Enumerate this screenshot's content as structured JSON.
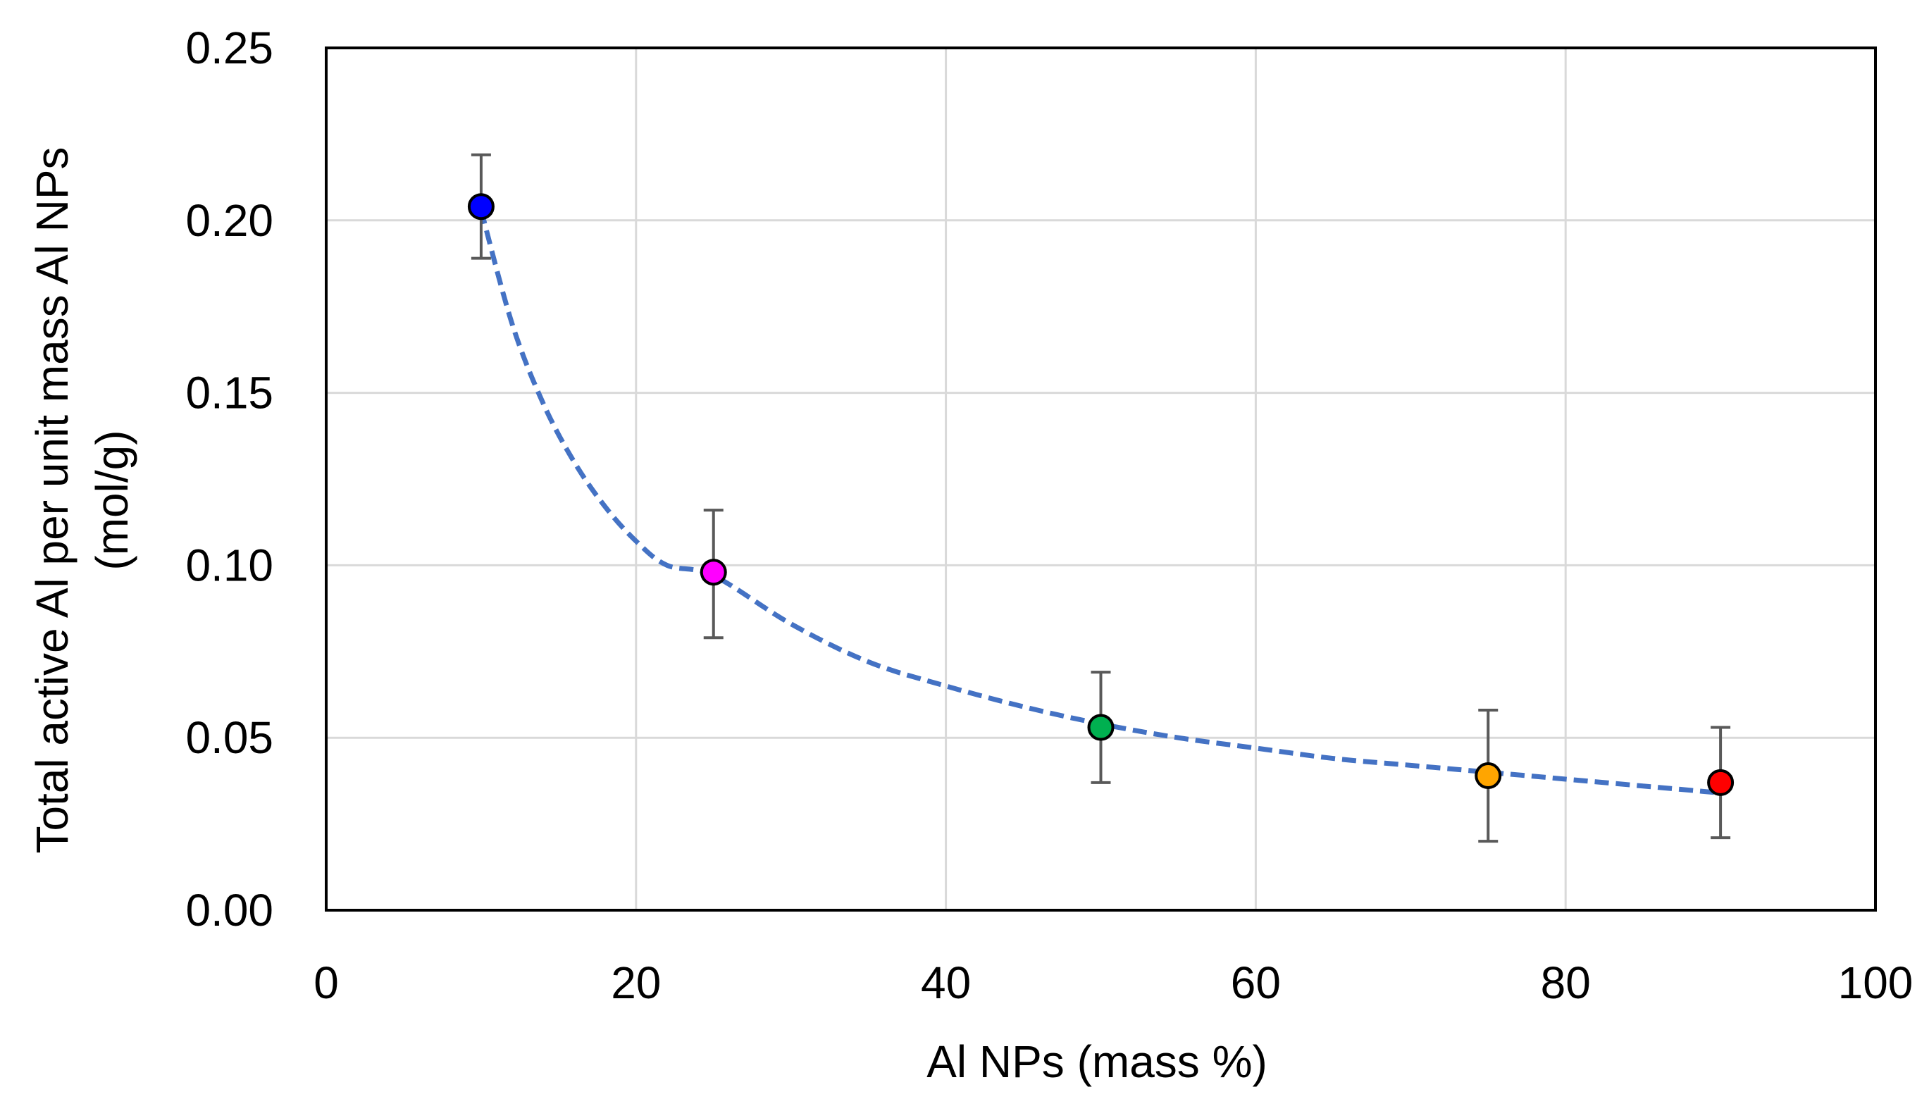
{
  "chart_data": {
    "type": "scatter",
    "title": "",
    "xlabel": "Al NPs (mass %)",
    "ylabel_line1": "Total active Al per unit mass Al NPs",
    "ylabel_line2": "(mol/g)",
    "xlim": [
      0,
      100
    ],
    "ylim": [
      0,
      0.25
    ],
    "x_ticks": [
      0,
      20,
      40,
      60,
      80,
      100
    ],
    "x_tick_labels": [
      "0",
      "20",
      "40",
      "60",
      "80",
      "100"
    ],
    "y_ticks": [
      0,
      0.05,
      0.1,
      0.15,
      0.2,
      0.25
    ],
    "y_tick_labels": [
      "0.00",
      "0.05",
      "0.10",
      "0.15",
      "0.20",
      "0.25"
    ],
    "grid": true,
    "points": [
      {
        "x": 10,
        "y": 0.204,
        "err_low": 0.189,
        "err_high": 0.219,
        "color": "#0000ff"
      },
      {
        "x": 25,
        "y": 0.098,
        "err_low": 0.079,
        "err_high": 0.116,
        "color": "#ff00ff"
      },
      {
        "x": 50,
        "y": 0.053,
        "err_low": 0.037,
        "err_high": 0.069,
        "color": "#00b050"
      },
      {
        "x": 75,
        "y": 0.039,
        "err_low": 0.02,
        "err_high": 0.058,
        "color": "#ffa500"
      },
      {
        "x": 90,
        "y": 0.037,
        "err_low": 0.021,
        "err_high": 0.053,
        "color": "#ff0000"
      }
    ],
    "trendline": {
      "style": "dashed",
      "color": "#4472c4",
      "x": [
        10,
        12,
        14,
        16,
        18,
        20,
        22,
        25,
        30,
        35,
        40,
        45,
        50,
        55,
        60,
        65,
        70,
        75,
        80,
        85,
        90
      ],
      "y": [
        0.203,
        0.17,
        0.147,
        0.13,
        0.117,
        0.107,
        0.1,
        0.097,
        0.083,
        0.072,
        0.065,
        0.059,
        0.054,
        0.05,
        0.047,
        0.044,
        0.042,
        0.04,
        0.038,
        0.036,
        0.034
      ]
    }
  }
}
